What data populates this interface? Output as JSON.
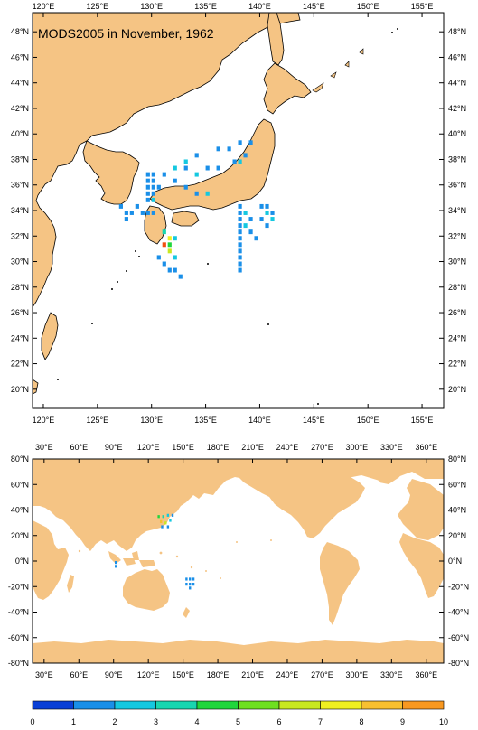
{
  "top_map": {
    "title": "MODS2005 in November, 1962",
    "lon_range": [
      119,
      157
    ],
    "lat_range": [
      18.5,
      49.5
    ],
    "lon_ticks": [
      "120°E",
      "125°E",
      "130°E",
      "135°E",
      "140°E",
      "145°E",
      "150°E",
      "155°E"
    ],
    "lat_ticks": [
      "20°N",
      "22°N",
      "24°N",
      "26°N",
      "28°N",
      "30°N",
      "32°N",
      "34°N",
      "36°N",
      "38°N",
      "40°N",
      "42°N",
      "44°N",
      "46°N",
      "48°N"
    ]
  },
  "bottom_map": {
    "lon_range": [
      20,
      375
    ],
    "lat_range": [
      -80,
      80
    ],
    "lon_ticks": [
      "30°E",
      "60°E",
      "90°E",
      "120°E",
      "150°E",
      "180°E",
      "210°E",
      "240°E",
      "270°E",
      "300°E",
      "330°E",
      "360°E"
    ],
    "lat_ticks": [
      "80°N",
      "60°N",
      "40°N",
      "20°N",
      "0°N",
      "-20°N",
      "-40°N",
      "-60°N",
      "-80°N"
    ]
  },
  "colorbar": {
    "labels": [
      "0",
      "1",
      "2",
      "3",
      "4",
      "5",
      "6",
      "7",
      "8",
      "9",
      "10"
    ],
    "colors": [
      "#0a3fd6",
      "#1a8fe8",
      "#14c8e0",
      "#18d6b0",
      "#20d63c",
      "#6ee020",
      "#c8e820",
      "#f0f020",
      "#f8c030",
      "#f89820",
      "#f05010"
    ]
  },
  "colors": {
    "land": "#f5c484",
    "ocean": "#ffffff",
    "coast": "#000000"
  },
  "chart_data": {
    "type": "heatmap",
    "title": "MODS2005 in November, 1962",
    "value_range": [
      0,
      10
    ],
    "cells_top": [
      {
        "lon": 136,
        "lat": 39,
        "v": 1
      },
      {
        "lon": 137,
        "lat": 39,
        "v": 1
      },
      {
        "lon": 138,
        "lat": 39.5,
        "v": 1
      },
      {
        "lon": 139,
        "lat": 39.5,
        "v": 1
      },
      {
        "lon": 138.5,
        "lat": 38.5,
        "v": 1
      },
      {
        "lon": 137.5,
        "lat": 38,
        "v": 1
      },
      {
        "lon": 138,
        "lat": 38,
        "v": 2
      },
      {
        "lon": 134,
        "lat": 38.5,
        "v": 1
      },
      {
        "lon": 133,
        "lat": 38,
        "v": 2
      },
      {
        "lon": 132,
        "lat": 37.5,
        "v": 2
      },
      {
        "lon": 133,
        "lat": 37.5,
        "v": 1
      },
      {
        "lon": 131,
        "lat": 37,
        "v": 1
      },
      {
        "lon": 132,
        "lat": 36.5,
        "v": 1
      },
      {
        "lon": 134,
        "lat": 37,
        "v": 2
      },
      {
        "lon": 135,
        "lat": 37.5,
        "v": 1
      },
      {
        "lon": 136,
        "lat": 37.5,
        "v": 1
      },
      {
        "lon": 133,
        "lat": 36,
        "v": 1
      },
      {
        "lon": 134,
        "lat": 35.5,
        "v": 1
      },
      {
        "lon": 135,
        "lat": 35.5,
        "v": 2
      },
      {
        "lon": 129.5,
        "lat": 37,
        "v": 1
      },
      {
        "lon": 130,
        "lat": 37,
        "v": 1
      },
      {
        "lon": 129.5,
        "lat": 36.5,
        "v": 1
      },
      {
        "lon": 130,
        "lat": 36.5,
        "v": 1
      },
      {
        "lon": 129.5,
        "lat": 36,
        "v": 1
      },
      {
        "lon": 130,
        "lat": 36,
        "v": 1
      },
      {
        "lon": 130.5,
        "lat": 36,
        "v": 1
      },
      {
        "lon": 129.5,
        "lat": 35.5,
        "v": 1
      },
      {
        "lon": 130,
        "lat": 35.5,
        "v": 1
      },
      {
        "lon": 129.5,
        "lat": 35,
        "v": 1
      },
      {
        "lon": 130,
        "lat": 35,
        "v": 2
      },
      {
        "lon": 127,
        "lat": 34.5,
        "v": 1
      },
      {
        "lon": 127.5,
        "lat": 34,
        "v": 1
      },
      {
        "lon": 128,
        "lat": 34,
        "v": 1
      },
      {
        "lon": 127.5,
        "lat": 33.5,
        "v": 1
      },
      {
        "lon": 129,
        "lat": 34,
        "v": 1
      },
      {
        "lon": 129.5,
        "lat": 34,
        "v": 1
      },
      {
        "lon": 130,
        "lat": 34,
        "v": 1
      },
      {
        "lon": 128.5,
        "lat": 34.5,
        "v": 1
      },
      {
        "lon": 131,
        "lat": 32.5,
        "v": 3
      },
      {
        "lon": 131.5,
        "lat": 32,
        "v": 7
      },
      {
        "lon": 131.5,
        "lat": 31.5,
        "v": 4
      },
      {
        "lon": 131,
        "lat": 31.5,
        "v": 10
      },
      {
        "lon": 131.5,
        "lat": 31,
        "v": 6
      },
      {
        "lon": 132,
        "lat": 32,
        "v": 2
      },
      {
        "lon": 130.5,
        "lat": 30.5,
        "v": 1
      },
      {
        "lon": 131,
        "lat": 30,
        "v": 1
      },
      {
        "lon": 131.5,
        "lat": 29.5,
        "v": 1
      },
      {
        "lon": 132,
        "lat": 29.5,
        "v": 1
      },
      {
        "lon": 132.5,
        "lat": 29,
        "v": 1
      },
      {
        "lon": 132,
        "lat": 30.5,
        "v": 2
      },
      {
        "lon": 138,
        "lat": 34.5,
        "v": 1
      },
      {
        "lon": 138,
        "lat": 34,
        "v": 1
      },
      {
        "lon": 138,
        "lat": 33.5,
        "v": 1
      },
      {
        "lon": 138,
        "lat": 33,
        "v": 1
      },
      {
        "lon": 138,
        "lat": 32.5,
        "v": 1
      },
      {
        "lon": 138,
        "lat": 32,
        "v": 1
      },
      {
        "lon": 138,
        "lat": 31.5,
        "v": 1
      },
      {
        "lon": 138,
        "lat": 31,
        "v": 1
      },
      {
        "lon": 138,
        "lat": 30.5,
        "v": 1
      },
      {
        "lon": 138,
        "lat": 30,
        "v": 1
      },
      {
        "lon": 138,
        "lat": 29.5,
        "v": 1
      },
      {
        "lon": 138.5,
        "lat": 34,
        "v": 2
      },
      {
        "lon": 138.5,
        "lat": 33,
        "v": 2
      },
      {
        "lon": 139,
        "lat": 33.5,
        "v": 1
      },
      {
        "lon": 139,
        "lat": 32.5,
        "v": 1
      },
      {
        "lon": 139.5,
        "lat": 32,
        "v": 1
      },
      {
        "lon": 140,
        "lat": 34.5,
        "v": 1
      },
      {
        "lon": 140.5,
        "lat": 34.5,
        "v": 1
      },
      {
        "lon": 140.5,
        "lat": 34,
        "v": 2
      },
      {
        "lon": 140,
        "lat": 33.5,
        "v": 1
      },
      {
        "lon": 141,
        "lat": 34,
        "v": 1
      },
      {
        "lon": 140.5,
        "lat": 33,
        "v": 1
      },
      {
        "lon": 141,
        "lat": 33.5,
        "v": 2
      }
    ],
    "cells_bottom": [
      {
        "lon": 128,
        "lat": 36,
        "v": 4
      },
      {
        "lon": 132,
        "lat": 36,
        "v": 3
      },
      {
        "lon": 136,
        "lat": 37,
        "v": 2
      },
      {
        "lon": 140,
        "lat": 37,
        "v": 1
      },
      {
        "lon": 130,
        "lat": 32,
        "v": 8
      },
      {
        "lon": 134,
        "lat": 31,
        "v": 6
      },
      {
        "lon": 138,
        "lat": 33,
        "v": 2
      },
      {
        "lon": 131,
        "lat": 28,
        "v": 1
      },
      {
        "lon": 136,
        "lat": 28,
        "v": 1
      },
      {
        "lon": 91,
        "lat": 0,
        "v": 1
      },
      {
        "lon": 91,
        "lat": -3,
        "v": 1
      },
      {
        "lon": 152,
        "lat": -13,
        "v": 1
      },
      {
        "lon": 155,
        "lat": -13,
        "v": 1
      },
      {
        "lon": 158,
        "lat": -13,
        "v": 1
      },
      {
        "lon": 152,
        "lat": -17,
        "v": 1
      },
      {
        "lon": 155,
        "lat": -17,
        "v": 1
      },
      {
        "lon": 158,
        "lat": -17,
        "v": 1
      },
      {
        "lon": 155,
        "lat": -20,
        "v": 1
      }
    ]
  }
}
